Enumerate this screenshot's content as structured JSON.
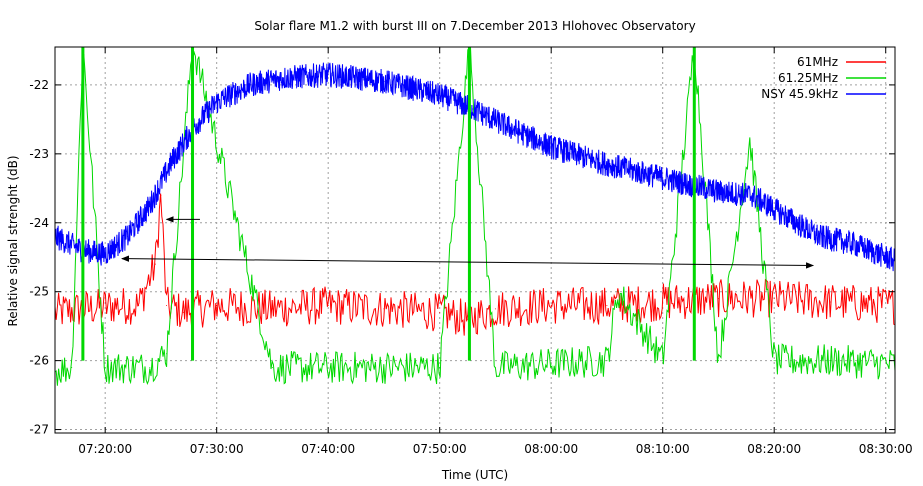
{
  "chart_data": {
    "type": "line",
    "title": "Solar flare M1.2 with burst III on 7.December 2013 Hlohovec Observatory",
    "xlabel": "Time (UTC)",
    "ylabel": "Relative signal strenght (dB)",
    "x_unit": "UTC time",
    "xlim": [
      "07:15:30",
      "08:30:50"
    ],
    "ylim": [
      -27.05,
      -21.45
    ],
    "x_ticks": [
      "07:20:00",
      "07:30:00",
      "07:40:00",
      "07:50:00",
      "08:00:00",
      "08:10:00",
      "08:20:00",
      "08:30:00"
    ],
    "y_ticks": [
      -27,
      -26,
      -25,
      -24,
      -23,
      -22
    ],
    "grid": true,
    "legend_position": "top-right",
    "series": [
      {
        "name": "61MHz",
        "color": "#ff0000",
        "x": [
          "07:15:30",
          "07:18:00",
          "07:21:00",
          "07:23:00",
          "07:24:30",
          "07:25:00",
          "07:25:30",
          "07:27:00",
          "07:30:00",
          "07:35:00",
          "07:40:00",
          "07:45:00",
          "07:50:00",
          "07:52:30",
          "07:55:00",
          "08:00:00",
          "08:05:00",
          "08:10:00",
          "08:15:00",
          "08:20:00",
          "08:25:00",
          "08:30:50"
        ],
        "values": [
          -25.3,
          -25.25,
          -25.2,
          -25.2,
          -24.6,
          -23.6,
          -25.2,
          -25.3,
          -25.2,
          -25.25,
          -25.2,
          -25.25,
          -25.3,
          -25.4,
          -25.25,
          -25.2,
          -25.2,
          -25.15,
          -25.1,
          -25.1,
          -25.15,
          -25.2
        ]
      },
      {
        "name": "61.25MHz",
        "color": "#00d800",
        "x": [
          "07:15:30",
          "07:17:00",
          "07:18:00",
          "07:20:00",
          "07:24:00",
          "07:25:30",
          "07:27:50",
          "07:35:00",
          "07:45:00",
          "07:50:00",
          "07:52:40",
          "07:55:00",
          "08:00:00",
          "08:05:00",
          "08:06:00",
          "08:10:00",
          "08:12:50",
          "08:15:00",
          "08:17:50",
          "08:20:00",
          "08:25:00",
          "08:30:50"
        ],
        "values": [
          -26.15,
          -26.1,
          -21.4,
          -26.1,
          -26.1,
          -25.9,
          -21.4,
          -26.1,
          -26.1,
          -26.1,
          -21.4,
          -26.1,
          -26.05,
          -26.0,
          -25.0,
          -26.0,
          -21.4,
          -26.0,
          -22.8,
          -26.0,
          -26.0,
          -26.05
        ]
      },
      {
        "name": "NSY 45.9kHz",
        "color": "#0000ff",
        "x": [
          "07:15:30",
          "07:18:00",
          "07:20:00",
          "07:22:00",
          "07:24:00",
          "07:26:00",
          "07:28:00",
          "07:30:00",
          "07:33:00",
          "07:36:00",
          "07:40:00",
          "07:45:00",
          "07:50:00",
          "07:53:00",
          "07:56:00",
          "08:00:00",
          "08:05:00",
          "08:10:00",
          "08:15:00",
          "08:18:00",
          "08:21:00",
          "08:24:00",
          "08:27:00",
          "08:30:50"
        ],
        "values": [
          -24.2,
          -24.4,
          -24.45,
          -24.2,
          -23.75,
          -23.1,
          -22.6,
          -22.25,
          -22.0,
          -21.9,
          -21.85,
          -21.95,
          -22.15,
          -22.35,
          -22.6,
          -22.9,
          -23.15,
          -23.35,
          -23.55,
          -23.6,
          -23.9,
          -24.2,
          -24.3,
          -24.55
        ]
      }
    ],
    "annotations": [
      {
        "type": "arrow",
        "from": [
          "07:28:30",
          -23.95
        ],
        "to": [
          "07:25:30",
          -23.95
        ]
      },
      {
        "type": "double-arrow",
        "from": [
          "07:21:30",
          -24.52
        ],
        "to": [
          "08:23:30",
          -24.62
        ]
      }
    ]
  }
}
